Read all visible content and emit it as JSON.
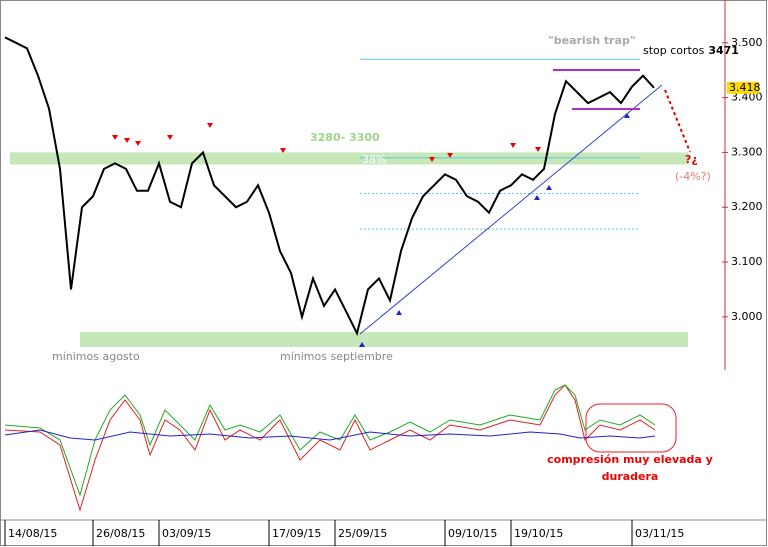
{
  "chart_data": {
    "type": "line",
    "categories": [
      "14/08/15",
      null,
      null,
      null,
      null,
      null,
      null,
      null,
      "26/08/15",
      null,
      null,
      null,
      null,
      null,
      "03/09/15",
      null,
      null,
      null,
      null,
      null,
      null,
      null,
      null,
      null,
      "17/09/15",
      null,
      null,
      null,
      null,
      null,
      "25/09/15",
      null,
      null,
      null,
      null,
      null,
      null,
      null,
      null,
      null,
      "09/10/15",
      null,
      null,
      null,
      null,
      null,
      "19/10/15",
      null,
      null,
      null,
      null,
      null,
      null,
      null,
      null,
      null,
      null,
      "03/11/15",
      null,
      null
    ],
    "series": [
      {
        "color": "#000000",
        "values": [
          3.51,
          3.5,
          3.49,
          3.44,
          3.38,
          3.27,
          3.05,
          3.2,
          3.22,
          3.27,
          3.28,
          3.27,
          3.23,
          3.23,
          3.28,
          3.21,
          3.2,
          3.28,
          3.3,
          3.24,
          3.22,
          3.2,
          3.21,
          3.24,
          3.19,
          3.12,
          3.08,
          3.0,
          3.07,
          3.02,
          3.05,
          3.01,
          2.97,
          3.05,
          3.07,
          3.03,
          3.12,
          3.18,
          3.22,
          3.24,
          3.26,
          3.25,
          3.22,
          3.21,
          3.19,
          3.23,
          3.24,
          3.26,
          3.25,
          3.27,
          3.37,
          3.43,
          3.41,
          3.39,
          3.4,
          3.41,
          3.39,
          3.42,
          3.44,
          3.418
        ]
      }
    ],
    "ylim": [
      2.903,
      3.569
    ],
    "yticks": [
      {
        "value": 3.0,
        "label": "3.000"
      },
      {
        "value": 3.1,
        "label": "3.100"
      },
      {
        "value": 3.2,
        "label": "3.200"
      },
      {
        "value": 3.3,
        "label": "3.300"
      },
      {
        "value": 3.4,
        "label": "3.400"
      },
      {
        "value": 3.5,
        "label": "3.500"
      }
    ],
    "last_price": {
      "value": 3.418,
      "label": "3.418"
    },
    "zones": [
      [
        3.278,
        3.3
      ],
      [
        2.945,
        2.972
      ]
    ],
    "levels": [
      3.47,
      3.29,
      3.225,
      3.16
    ],
    "annotations": {
      "zone": "3280- 3300",
      "fib": "38%",
      "trap": "\"bearish trap\"",
      "stop": "stop cortos",
      "stop_value": "3471",
      "question": "?¿",
      "target": "(-4%?)",
      "low_aug": "mínimos agosto",
      "low_sep": "mínimos septiembre",
      "compression1": "compresión muy elevada y",
      "compression2": "duradera"
    }
  }
}
